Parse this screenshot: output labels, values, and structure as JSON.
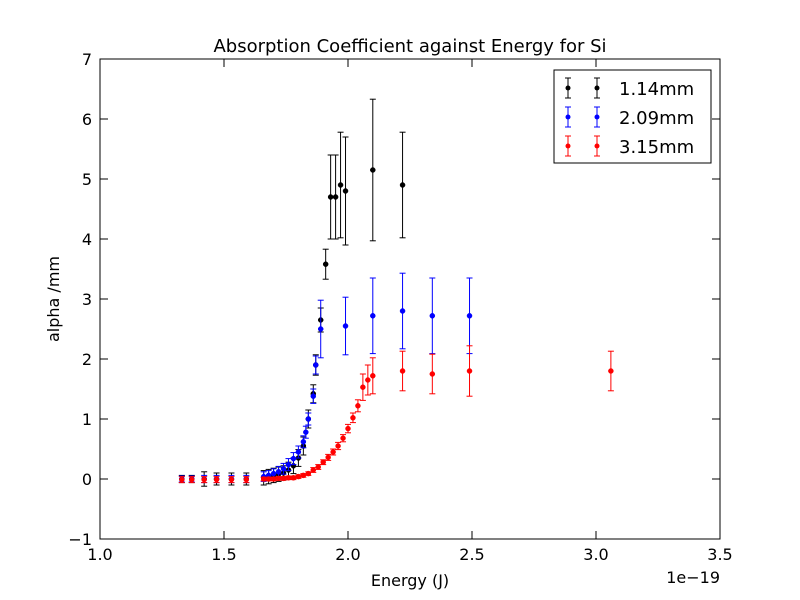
{
  "chart_data": {
    "type": "scatter",
    "title": "Absorption Coefficient against Energy for Si",
    "xlabel": "Energy (J)",
    "ylabel": "alpha /mm",
    "x_offset_label": "1e−19",
    "xlim": [
      1.0,
      3.5
    ],
    "ylim": [
      -1,
      7
    ],
    "x_ticks": [
      1.0,
      1.5,
      2.0,
      2.5,
      3.0,
      3.5
    ],
    "x_tick_labels": [
      "1.0",
      "1.5",
      "2.0",
      "2.5",
      "3.0",
      "3.5"
    ],
    "y_ticks": [
      -1,
      0,
      1,
      2,
      3,
      4,
      5,
      6,
      7
    ],
    "y_tick_labels": [
      "−1",
      "0",
      "1",
      "2",
      "3",
      "4",
      "5",
      "6",
      "7"
    ],
    "grid": false,
    "legend_position": "top-right",
    "series": [
      {
        "name": "1.14mm",
        "color": "#000000",
        "points": [
          {
            "x": 1.33,
            "y": 0.0,
            "err": 0.06
          },
          {
            "x": 1.37,
            "y": 0.0,
            "err": 0.06
          },
          {
            "x": 1.42,
            "y": 0.0,
            "err": 0.12
          },
          {
            "x": 1.47,
            "y": 0.0,
            "err": 0.1
          },
          {
            "x": 1.53,
            "y": 0.0,
            "err": 0.1
          },
          {
            "x": 1.59,
            "y": 0.0,
            "err": 0.1
          },
          {
            "x": 1.66,
            "y": 0.02,
            "err": 0.12
          },
          {
            "x": 1.68,
            "y": 0.04,
            "err": 0.12
          },
          {
            "x": 1.7,
            "y": 0.06,
            "err": 0.12
          },
          {
            "x": 1.72,
            "y": 0.08,
            "err": 0.12
          },
          {
            "x": 1.74,
            "y": 0.1,
            "err": 0.12
          },
          {
            "x": 1.76,
            "y": 0.15,
            "err": 0.13
          },
          {
            "x": 1.78,
            "y": 0.22,
            "err": 0.13
          },
          {
            "x": 1.8,
            "y": 0.35,
            "err": 0.14
          },
          {
            "x": 1.82,
            "y": 0.55,
            "err": 0.15
          },
          {
            "x": 1.84,
            "y": 1.0,
            "err": 0.15
          },
          {
            "x": 1.86,
            "y": 1.42,
            "err": 0.15
          },
          {
            "x": 1.87,
            "y": 1.9,
            "err": 0.17
          },
          {
            "x": 1.89,
            "y": 2.65,
            "err": 0.2
          },
          {
            "x": 1.91,
            "y": 3.58,
            "err": 0.25
          },
          {
            "x": 1.93,
            "y": 4.7,
            "err": 0.7
          },
          {
            "x": 1.95,
            "y": 4.7,
            "err": 0.7
          },
          {
            "x": 1.97,
            "y": 4.9,
            "err": 0.88
          },
          {
            "x": 1.99,
            "y": 4.8,
            "err": 0.9
          },
          {
            "x": 2.1,
            "y": 5.15,
            "err": 1.18
          },
          {
            "x": 2.22,
            "y": 4.9,
            "err": 0.88
          }
        ]
      },
      {
        "name": "2.09mm",
        "color": "#0000ff",
        "points": [
          {
            "x": 1.33,
            "y": 0.0,
            "err": 0.05
          },
          {
            "x": 1.37,
            "y": 0.0,
            "err": 0.05
          },
          {
            "x": 1.42,
            "y": 0.0,
            "err": 0.06
          },
          {
            "x": 1.47,
            "y": 0.0,
            "err": 0.06
          },
          {
            "x": 1.53,
            "y": 0.0,
            "err": 0.06
          },
          {
            "x": 1.59,
            "y": 0.0,
            "err": 0.06
          },
          {
            "x": 1.66,
            "y": 0.04,
            "err": 0.08
          },
          {
            "x": 1.68,
            "y": 0.06,
            "err": 0.08
          },
          {
            "x": 1.7,
            "y": 0.09,
            "err": 0.08
          },
          {
            "x": 1.72,
            "y": 0.12,
            "err": 0.09
          },
          {
            "x": 1.74,
            "y": 0.17,
            "err": 0.09
          },
          {
            "x": 1.76,
            "y": 0.24,
            "err": 0.1
          },
          {
            "x": 1.78,
            "y": 0.34,
            "err": 0.1
          },
          {
            "x": 1.8,
            "y": 0.45,
            "err": 0.1
          },
          {
            "x": 1.82,
            "y": 0.62,
            "err": 0.1
          },
          {
            "x": 1.83,
            "y": 0.78,
            "err": 0.1
          },
          {
            "x": 1.84,
            "y": 1.0,
            "err": 0.1
          },
          {
            "x": 1.86,
            "y": 1.38,
            "err": 0.12
          },
          {
            "x": 1.87,
            "y": 1.9,
            "err": 0.15
          },
          {
            "x": 1.89,
            "y": 2.5,
            "err": 0.48
          },
          {
            "x": 1.99,
            "y": 2.55,
            "err": 0.48
          },
          {
            "x": 2.1,
            "y": 2.72,
            "err": 0.63
          },
          {
            "x": 2.22,
            "y": 2.8,
            "err": 0.63
          },
          {
            "x": 2.34,
            "y": 2.72,
            "err": 0.63
          },
          {
            "x": 2.49,
            "y": 2.72,
            "err": 0.63
          }
        ]
      },
      {
        "name": "3.15mm",
        "color": "#ff0000",
        "points": [
          {
            "x": 1.33,
            "y": -0.01,
            "err": 0.05
          },
          {
            "x": 1.37,
            "y": -0.01,
            "err": 0.05
          },
          {
            "x": 1.42,
            "y": -0.01,
            "err": 0.05
          },
          {
            "x": 1.47,
            "y": -0.01,
            "err": 0.05
          },
          {
            "x": 1.53,
            "y": -0.01,
            "err": 0.05
          },
          {
            "x": 1.59,
            "y": -0.01,
            "err": 0.05
          },
          {
            "x": 1.66,
            "y": 0.0,
            "err": 0.03
          },
          {
            "x": 1.68,
            "y": 0.0,
            "err": 0.03
          },
          {
            "x": 1.7,
            "y": 0.0,
            "err": 0.03
          },
          {
            "x": 1.72,
            "y": 0.01,
            "err": 0.03
          },
          {
            "x": 1.74,
            "y": 0.01,
            "err": 0.03
          },
          {
            "x": 1.76,
            "y": 0.02,
            "err": 0.03
          },
          {
            "x": 1.78,
            "y": 0.02,
            "err": 0.03
          },
          {
            "x": 1.8,
            "y": 0.04,
            "err": 0.03
          },
          {
            "x": 1.82,
            "y": 0.06,
            "err": 0.03
          },
          {
            "x": 1.84,
            "y": 0.09,
            "err": 0.03
          },
          {
            "x": 1.86,
            "y": 0.15,
            "err": 0.04
          },
          {
            "x": 1.88,
            "y": 0.2,
            "err": 0.04
          },
          {
            "x": 1.9,
            "y": 0.28,
            "err": 0.04
          },
          {
            "x": 1.92,
            "y": 0.36,
            "err": 0.05
          },
          {
            "x": 1.94,
            "y": 0.45,
            "err": 0.05
          },
          {
            "x": 1.96,
            "y": 0.55,
            "err": 0.06
          },
          {
            "x": 1.98,
            "y": 0.68,
            "err": 0.06
          },
          {
            "x": 2.0,
            "y": 0.84,
            "err": 0.07
          },
          {
            "x": 2.02,
            "y": 1.02,
            "err": 0.08
          },
          {
            "x": 2.04,
            "y": 1.22,
            "err": 0.1
          },
          {
            "x": 2.06,
            "y": 1.53,
            "err": 0.22
          },
          {
            "x": 2.08,
            "y": 1.65,
            "err": 0.25
          },
          {
            "x": 2.1,
            "y": 1.72,
            "err": 0.3
          },
          {
            "x": 2.22,
            "y": 1.8,
            "err": 0.33
          },
          {
            "x": 2.34,
            "y": 1.75,
            "err": 0.33
          },
          {
            "x": 2.49,
            "y": 1.8,
            "err": 0.42
          },
          {
            "x": 3.06,
            "y": 1.8,
            "err": 0.33
          }
        ]
      }
    ]
  }
}
